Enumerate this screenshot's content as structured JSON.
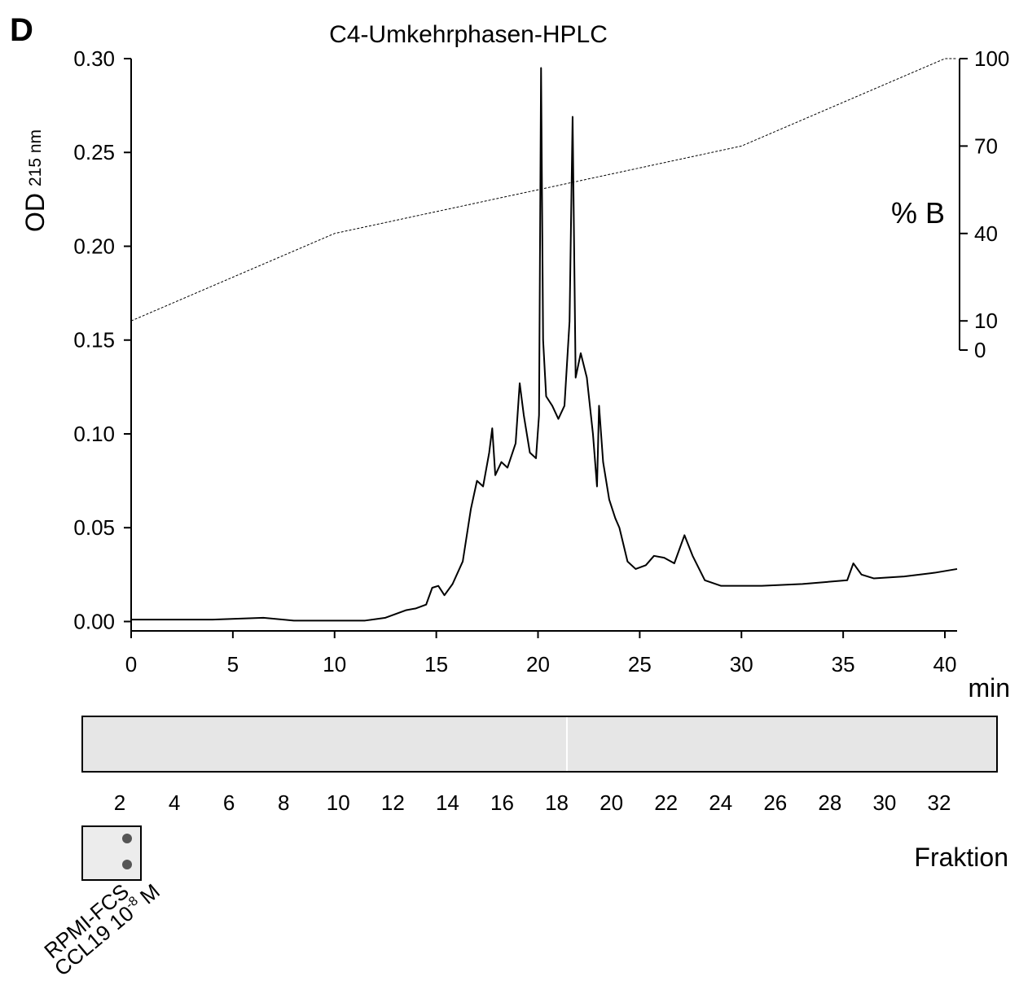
{
  "panel": "D",
  "chart_data": {
    "type": "line",
    "title": "C4-Umkehrphasen-HPLC",
    "y_label": "OD",
    "y_label_sub": "215 nm",
    "x_label": "min",
    "y2_label": "% B",
    "xlim": [
      0,
      40.6
    ],
    "xticks": [
      0,
      5,
      10,
      15,
      20,
      25,
      30,
      35,
      40
    ],
    "ylim": [
      -0.005,
      0.3
    ],
    "yticks": [
      {
        "value": 0,
        "label": "0.00"
      },
      {
        "value": 0.05,
        "label": "0.05"
      },
      {
        "value": 0.1,
        "label": "0.10"
      },
      {
        "value": 0.15,
        "label": "0.15"
      },
      {
        "value": 0.2,
        "label": "0.20"
      },
      {
        "value": 0.25,
        "label": "0.25"
      },
      {
        "value": 0.3,
        "label": "0.30"
      }
    ],
    "y2lim": [
      0,
      100
    ],
    "y2ticks": [
      0,
      10,
      40,
      70,
      100
    ],
    "series": [
      {
        "color": "#000000",
        "x": [
          0,
          4,
          6.5,
          8,
          11.5,
          12.5,
          13.5,
          14,
          14.5,
          14.8,
          15.1,
          15.4,
          15.8,
          16.3,
          16.7,
          17.0,
          17.3,
          17.6,
          17.75,
          17.9,
          18.2,
          18.5,
          18.9,
          19.1,
          19.3,
          19.6,
          19.9,
          20.05,
          20.15,
          20.25,
          20.4,
          20.7,
          21.0,
          21.3,
          21.55,
          21.7,
          21.85,
          22.1,
          22.4,
          22.7,
          22.9,
          23.0,
          23.2,
          23.5,
          23.8,
          24.0,
          24.4,
          24.8,
          25.3,
          25.7,
          26.2,
          26.7,
          27.2,
          27.6,
          28.2,
          29,
          31,
          33,
          35.2,
          35.5,
          35.9,
          36.5,
          38,
          39.5,
          40.6
        ],
        "values": [
          0.001,
          0.001,
          0.002,
          0.0005,
          0.0005,
          0.002,
          0.006,
          0.007,
          0.009,
          0.018,
          0.019,
          0.014,
          0.02,
          0.032,
          0.06,
          0.075,
          0.072,
          0.09,
          0.103,
          0.078,
          0.085,
          0.082,
          0.095,
          0.127,
          0.11,
          0.09,
          0.087,
          0.11,
          0.295,
          0.15,
          0.12,
          0.115,
          0.108,
          0.115,
          0.16,
          0.269,
          0.13,
          0.143,
          0.13,
          0.1,
          0.072,
          0.115,
          0.085,
          0.065,
          0.055,
          0.05,
          0.032,
          0.028,
          0.03,
          0.035,
          0.034,
          0.031,
          0.046,
          0.035,
          0.022,
          0.019,
          0.019,
          0.02,
          0.022,
          0.031,
          0.025,
          0.023,
          0.024,
          0.026,
          0.028
        ]
      },
      {
        "color": "#000000",
        "axis": "y2",
        "dashed": true,
        "x": [
          0,
          10,
          30,
          40,
          40.6
        ],
        "values": [
          10,
          40,
          70,
          100,
          100
        ]
      }
    ]
  },
  "blot": {
    "fractions": [
      2,
      4,
      6,
      8,
      10,
      12,
      14,
      16,
      18,
      20,
      22,
      24,
      26,
      28,
      30,
      32
    ],
    "fraction_label": "Fraktion",
    "controls": [
      "RPMI-FCS",
      {
        "text": "CCL19 10",
        "sup": "-8",
        "unit": "M"
      }
    ]
  }
}
